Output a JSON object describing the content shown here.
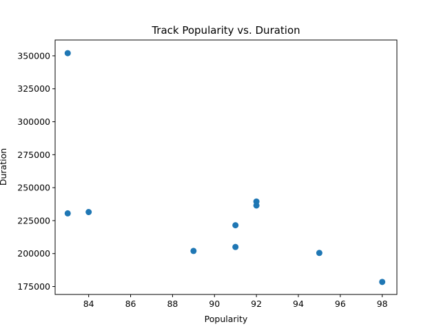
{
  "chart_data": {
    "type": "scatter",
    "title": "Track Popularity vs. Duration",
    "xlabel": "Popularity",
    "ylabel": "Duration",
    "xlim": [
      82.4,
      98.7
    ],
    "ylim": [
      169000,
      362000
    ],
    "x_ticks": [
      84,
      86,
      88,
      90,
      92,
      94,
      96,
      98
    ],
    "y_ticks": [
      175000,
      200000,
      225000,
      250000,
      275000,
      300000,
      325000,
      350000
    ],
    "grid": false,
    "marker_color": "#1f77b4",
    "series": [
      {
        "points": [
          {
            "x": 83,
            "y": 352000
          },
          {
            "x": 83,
            "y": 230500
          },
          {
            "x": 84,
            "y": 231500
          },
          {
            "x": 89,
            "y": 202000
          },
          {
            "x": 91,
            "y": 221500
          },
          {
            "x": 91,
            "y": 205000
          },
          {
            "x": 92,
            "y": 239500
          },
          {
            "x": 92,
            "y": 236500
          },
          {
            "x": 95,
            "y": 200500
          },
          {
            "x": 98,
            "y": 178500
          }
        ]
      }
    ]
  }
}
